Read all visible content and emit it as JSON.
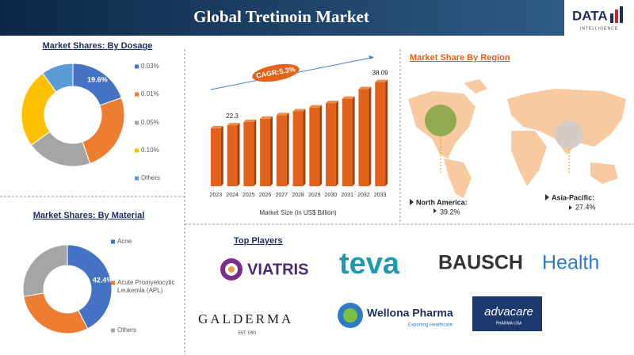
{
  "title": "Global Tretinoin Market",
  "logo": {
    "name": "DATA",
    "sub": "INTELLIGENCE"
  },
  "chart_data": [
    {
      "type": "pie",
      "title": "Market Shares: By Dosage",
      "categories": [
        "0.03%",
        "0.01%",
        "0.05%",
        "0.10%",
        "Others"
      ],
      "values": [
        19.6,
        25,
        20.4,
        25,
        10
      ],
      "value_labels": [
        "19.6%",
        null,
        null,
        null,
        null
      ],
      "colors": [
        "#4472c4",
        "#ed7d31",
        "#a5a5a5",
        "#ffc000",
        "#5b9bd5"
      ]
    },
    {
      "type": "bar",
      "xlabel": "Market Size (in US$ Billion)",
      "annotation": "CAGR:5.3%",
      "categories": [
        "2023",
        "2024",
        "2025",
        "2026",
        "2027",
        "2028",
        "2029",
        "2030",
        "2031",
        "2032",
        "2033"
      ],
      "values": [
        21.2,
        22.3,
        23.5,
        24.7,
        26.0,
        27.4,
        28.8,
        30.4,
        32.0,
        35.5,
        38.09
      ],
      "value_labels": [
        null,
        "22.3",
        null,
        null,
        null,
        null,
        null,
        null,
        null,
        null,
        "38.09"
      ],
      "color": "#e2621b",
      "ylim": [
        0,
        40
      ]
    },
    {
      "type": "pie",
      "title": "Market Shares: By Material",
      "categories": [
        "Acne",
        "Acute Promyelocytic Leukemia (APL)",
        "Others"
      ],
      "values": [
        42.4,
        30,
        27.6
      ],
      "value_labels": [
        "42.4%",
        null,
        null
      ],
      "colors": [
        "#4472c4",
        "#ed7d31",
        "#a5a5a5"
      ]
    }
  ],
  "region": {
    "title": "Market Share By Region",
    "items": [
      {
        "name": "North America:",
        "value": "39.2%"
      },
      {
        "name": "Asia-Pacific:",
        "value": "27.4%"
      }
    ]
  },
  "players": {
    "title": "Top Players",
    "items": [
      {
        "name": "VIATRIS"
      },
      {
        "name": "teva"
      },
      {
        "name": "BAUSCH",
        "name2": "Health"
      },
      {
        "name": "GALDERMA",
        "sub": "EST. 1981"
      },
      {
        "name": "Wellona Pharma",
        "sub": "Exporting Healthcare"
      },
      {
        "name": "advacare",
        "sub": "PHARMA USA"
      }
    ]
  }
}
